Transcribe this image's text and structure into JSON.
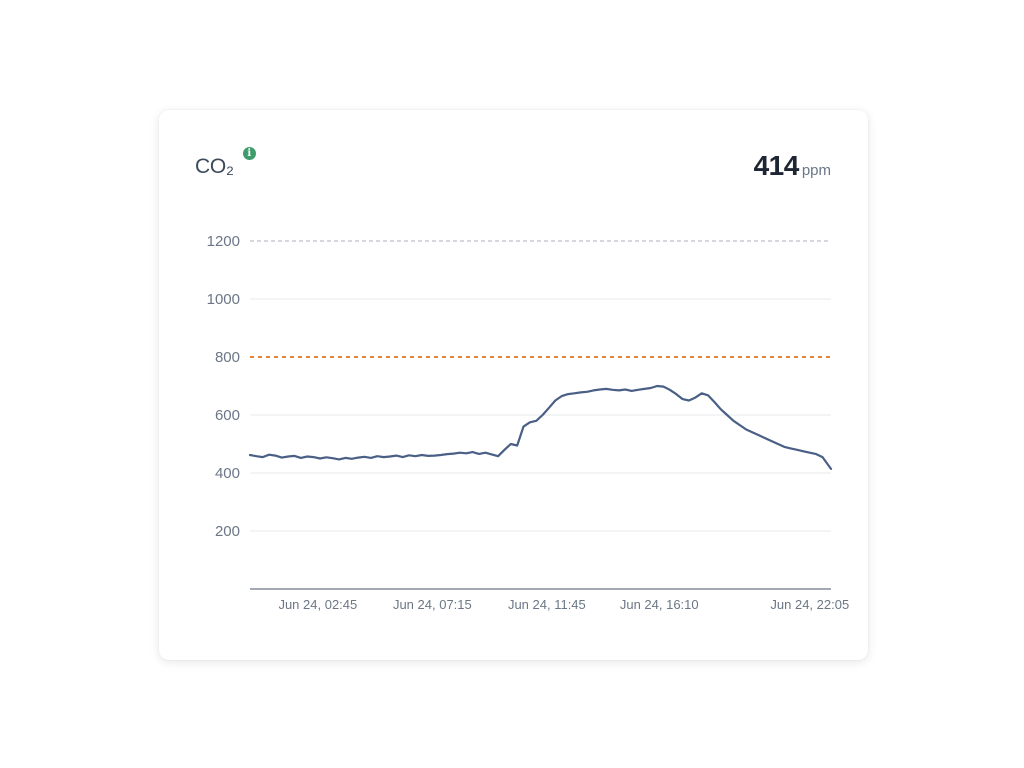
{
  "header": {
    "title": "CO₂",
    "info_icon": "info-icon",
    "current_value": "414",
    "current_unit": "ppm"
  },
  "colors": {
    "line": "#4a5f86",
    "threshold_warning": "#e8843a",
    "threshold_high": "#c8ccd2",
    "gridline": "#e6e9ed",
    "axis": "#6b7686",
    "info_icon": "#3e9c6b"
  },
  "chart_data": {
    "type": "line",
    "title": "",
    "xlabel": "",
    "ylabel": "",
    "ylim": [
      0,
      1200
    ],
    "yticks": [
      200,
      400,
      600,
      800,
      1000,
      1200
    ],
    "xtick_labels": [
      "Jun 24, 02:45",
      "Jun 24, 07:15",
      "Jun 24, 11:45",
      "Jun 24, 16:10",
      "Jun 24, 22:05"
    ],
    "xtick_values": [
      "2024-06-24T02:45",
      "2024-06-24T07:15",
      "2024-06-24T11:45",
      "2024-06-24T16:10",
      "2024-06-24T22:05"
    ],
    "x_range": [
      "2024-06-24T00:05",
      "2024-06-24T22:55"
    ],
    "grid": true,
    "thresholds": [
      {
        "value": 800,
        "style": "dashed",
        "color": "#e8843a"
      },
      {
        "value": 1200,
        "style": "dashed",
        "color": "#c8ccd2"
      }
    ],
    "series": [
      {
        "x": [
          "2024-06-24T00:05",
          "2024-06-24T00:20",
          "2024-06-24T00:35",
          "2024-06-24T00:50",
          "2024-06-24T01:05",
          "2024-06-24T01:20",
          "2024-06-24T01:35",
          "2024-06-24T01:50",
          "2024-06-24T02:05",
          "2024-06-24T02:20",
          "2024-06-24T02:35",
          "2024-06-24T02:50",
          "2024-06-24T03:05",
          "2024-06-24T03:20",
          "2024-06-24T03:35",
          "2024-06-24T03:50",
          "2024-06-24T04:05",
          "2024-06-24T04:20",
          "2024-06-24T04:35",
          "2024-06-24T04:50",
          "2024-06-24T05:05",
          "2024-06-24T05:20",
          "2024-06-24T05:35",
          "2024-06-24T05:50",
          "2024-06-24T06:05",
          "2024-06-24T06:20",
          "2024-06-24T06:35",
          "2024-06-24T06:50",
          "2024-06-24T07:05",
          "2024-06-24T07:20",
          "2024-06-24T07:35",
          "2024-06-24T07:50",
          "2024-06-24T08:05",
          "2024-06-24T08:20",
          "2024-06-24T08:35",
          "2024-06-24T08:50",
          "2024-06-24T09:05",
          "2024-06-24T09:20",
          "2024-06-24T09:35",
          "2024-06-24T09:50",
          "2024-06-24T10:05",
          "2024-06-24T10:20",
          "2024-06-24T10:35",
          "2024-06-24T10:50",
          "2024-06-24T11:05",
          "2024-06-24T11:20",
          "2024-06-24T11:35",
          "2024-06-24T11:50",
          "2024-06-24T12:05",
          "2024-06-24T12:20",
          "2024-06-24T12:35",
          "2024-06-24T12:50",
          "2024-06-24T13:05",
          "2024-06-24T13:20",
          "2024-06-24T13:35",
          "2024-06-24T13:50",
          "2024-06-24T14:05",
          "2024-06-24T14:20",
          "2024-06-24T14:35",
          "2024-06-24T14:50",
          "2024-06-24T15:05",
          "2024-06-24T15:20",
          "2024-06-24T15:35",
          "2024-06-24T15:50",
          "2024-06-24T16:05",
          "2024-06-24T16:20",
          "2024-06-24T16:35",
          "2024-06-24T16:50",
          "2024-06-24T17:05",
          "2024-06-24T17:20",
          "2024-06-24T17:35",
          "2024-06-24T17:50",
          "2024-06-24T18:05",
          "2024-06-24T18:20",
          "2024-06-24T18:35",
          "2024-06-24T18:50",
          "2024-06-24T19:05",
          "2024-06-24T19:20",
          "2024-06-24T19:35",
          "2024-06-24T19:50",
          "2024-06-24T20:05",
          "2024-06-24T20:20",
          "2024-06-24T20:35",
          "2024-06-24T20:50",
          "2024-06-24T21:05",
          "2024-06-24T21:20",
          "2024-06-24T21:35",
          "2024-06-24T21:50",
          "2024-06-24T22:05",
          "2024-06-24T22:20",
          "2024-06-24T22:35",
          "2024-06-24T22:55"
        ],
        "y": [
          462,
          458,
          455,
          463,
          460,
          453,
          457,
          459,
          452,
          457,
          455,
          450,
          454,
          451,
          447,
          452,
          449,
          453,
          456,
          452,
          458,
          455,
          457,
          460,
          455,
          461,
          458,
          462,
          459,
          460,
          462,
          465,
          467,
          470,
          468,
          472,
          466,
          470,
          464,
          458,
          480,
          500,
          495,
          560,
          575,
          580,
          600,
          625,
          650,
          665,
          672,
          675,
          678,
          680,
          685,
          688,
          690,
          687,
          685,
          688,
          683,
          687,
          690,
          693,
          700,
          698,
          687,
          672,
          655,
          650,
          660,
          675,
          668,
          645,
          620,
          600,
          580,
          565,
          550,
          540,
          530,
          520,
          510,
          500,
          490,
          485,
          480,
          475,
          470,
          465,
          455,
          414
        ]
      }
    ]
  }
}
